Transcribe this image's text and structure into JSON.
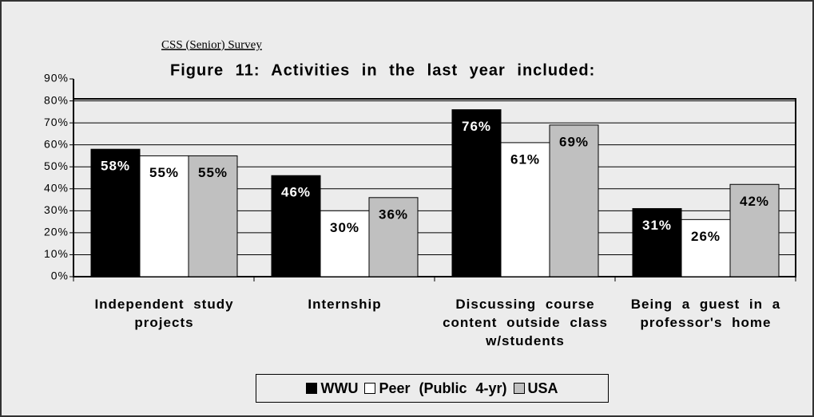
{
  "chart_data": {
    "type": "bar",
    "subtitle": "CSS (Senior) Survey",
    "title": "Figure 11: Activities in the last year included:",
    "categories": [
      "Independent study projects",
      "Internship",
      "Discussing course content outside class w/students",
      "Being a guest in a professor's home"
    ],
    "series": [
      {
        "name": "WWU",
        "color": "#000000",
        "values": [
          58,
          46,
          76,
          31
        ],
        "value_labels": [
          "58%",
          "46%",
          "76%",
          "31%"
        ]
      },
      {
        "name": "Peer (Public 4-yr)",
        "color": "#ffffff",
        "values": [
          55,
          30,
          61,
          26
        ],
        "value_labels": [
          "55%",
          "30%",
          "61%",
          "26%"
        ]
      },
      {
        "name": "USA",
        "color": "#c0c0c0",
        "values": [
          55,
          36,
          69,
          42
        ],
        "value_labels": [
          "55%",
          "36%",
          "69%",
          "42%"
        ]
      }
    ],
    "ylim": [
      0,
      90
    ],
    "yticks": [
      {
        "value": 0,
        "label": "0%"
      },
      {
        "value": 10,
        "label": "10%"
      },
      {
        "value": 20,
        "label": "20%"
      },
      {
        "value": 30,
        "label": "30%"
      },
      {
        "value": 40,
        "label": "40%"
      },
      {
        "value": 50,
        "label": "50%"
      },
      {
        "value": 60,
        "label": "60%"
      },
      {
        "value": 70,
        "label": "70%"
      },
      {
        "value": 80,
        "label": "80%"
      },
      {
        "value": 90,
        "label": "90%"
      }
    ],
    "grid": true,
    "legend": "bottom"
  }
}
